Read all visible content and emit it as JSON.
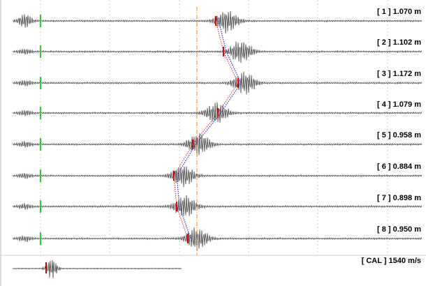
{
  "traces": [
    {
      "label": "[ 1 ] 1.070 m"
    },
    {
      "label": "[ 2 ] 1.102 m"
    },
    {
      "label": "[ 3 ] 1.172 m"
    },
    {
      "label": "[ 4 ] 1.079 m"
    },
    {
      "label": "[ 5 ] 0.958 m"
    },
    {
      "label": "[ 6 ] 0.884 m"
    },
    {
      "label": "[ 7 ] 0.898 m"
    },
    {
      "label": "[ 8 ] 0.950 m"
    }
  ],
  "calibration": {
    "label": "[ CAL ] 1540 m/s"
  },
  "colors": {
    "waveform": "#555555",
    "grid": "#cfcfcf",
    "start_marker": "#33cc33",
    "pick_marker": "#dd0000",
    "reference_line": "#ff9933",
    "pick_path_red": "#dd2222",
    "pick_path_blue": "#2233cc"
  }
}
